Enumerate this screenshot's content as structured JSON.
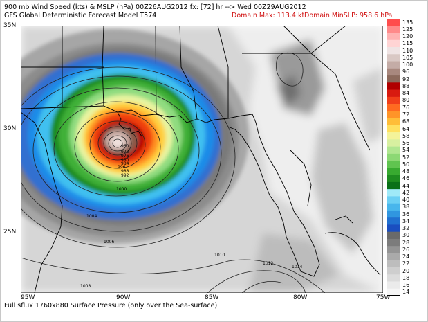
{
  "header": {
    "line1_left": "900 mb Wind Speed (kts) & MSLP (hPa) 00Z26AUG2012 fx: [72] hr --> Wed 00Z29AUG2012",
    "line2_left": "GFS Global Deterministic Forecast Model T574",
    "domain_max": "Domain Max: 113.4 kt",
    "domain_minslp": "Domain MinSLP: 958.6 hPa"
  },
  "footer": "Full sflux 1760x880 Surface Pressure (only over the Sea-surface)",
  "axes": {
    "lat_labels": [
      "35N",
      "30N",
      "25N"
    ],
    "lon_labels": [
      "95W",
      "90W",
      "85W",
      "80W",
      "75W"
    ]
  },
  "colorbar": {
    "levels": [
      "135",
      "125",
      "120",
      "115",
      "110",
      "105",
      "100",
      "96",
      "92",
      "88",
      "84",
      "80",
      "76",
      "72",
      "68",
      "64",
      "58",
      "56",
      "54",
      "52",
      "50",
      "48",
      "46",
      "44",
      "42",
      "40",
      "38",
      "36",
      "34",
      "32",
      "30",
      "28",
      "26",
      "24",
      "22",
      "20",
      "18",
      "16",
      "14"
    ],
    "colors": [
      "#ff4d4d",
      "#ff8a8a",
      "#ffb2b2",
      "#ffd4d4",
      "#efe4e4",
      "#d9c8c4",
      "#c4aca6",
      "#a8887e",
      "#8c6a5c",
      "#b00000",
      "#d81a10",
      "#f03e1a",
      "#ff6a20",
      "#ff9428",
      "#ffbd38",
      "#ffe060",
      "#f4f39a",
      "#d8f0a0",
      "#b0e690",
      "#8cd874",
      "#60c450",
      "#38aa30",
      "#1e8c20",
      "#0a7018",
      "#a0eaf8",
      "#6cd0f4",
      "#48b6ec",
      "#3096e0",
      "#2070d0",
      "#1a4ec0",
      "#6a6a6a",
      "#7c7c7c",
      "#949494",
      "#aaaaaa",
      "#bdbdbd",
      "#cecece",
      "#dcdcdc",
      "#ebebeb",
      "#f6f6f6"
    ]
  },
  "isobar_labels": [
    "996",
    "1000",
    "1004",
    "1006",
    "1008",
    "1010",
    "1012",
    "1014",
    "960",
    "972",
    "976",
    "980",
    "984",
    "988",
    "992"
  ]
}
